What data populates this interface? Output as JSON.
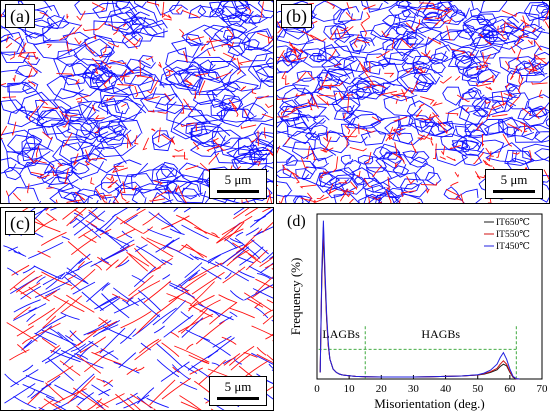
{
  "panels": [
    {
      "label": "(a)",
      "scale_bar": "5 μm",
      "seed": 11,
      "style": "equiaxed"
    },
    {
      "label": "(b)",
      "scale_bar": "5 μm",
      "seed": 23,
      "style": "fine"
    },
    {
      "label": "(c)",
      "scale_bar": "5 μm",
      "seed": 37,
      "style": "lath"
    }
  ],
  "colors": {
    "lagb": "#ff1010",
    "hagb": "#1010ff"
  },
  "chart_label": "(d)",
  "chart_data": {
    "type": "line",
    "xlabel": "Misorientation (deg.)",
    "ylabel": "Frequency (%)",
    "xlim": [
      0,
      70
    ],
    "ylim": [
      0,
      0.5
    ],
    "xticks": [
      0,
      10,
      20,
      30,
      40,
      50,
      60,
      70
    ],
    "regions": [
      {
        "label": "LAGBs",
        "from": 0,
        "to": 15
      },
      {
        "label": "HAGBs",
        "from": 15,
        "to": 62
      }
    ],
    "boundaries": [
      15,
      62
    ],
    "threshold_line": 0.09,
    "series": [
      {
        "name": "IT650℃",
        "color": "#1a1a1a",
        "x": [
          1,
          1.5,
          2,
          2.5,
          3,
          3.5,
          4,
          5,
          6,
          7,
          8,
          10,
          12,
          15,
          20,
          25,
          30,
          35,
          40,
          45,
          50,
          52,
          54,
          56,
          57,
          58,
          59,
          60,
          61,
          62,
          63
        ],
        "y": [
          0.02,
          0.3,
          0.44,
          0.3,
          0.18,
          0.1,
          0.06,
          0.03,
          0.02,
          0.015,
          0.012,
          0.01,
          0.008,
          0.007,
          0.006,
          0.006,
          0.006,
          0.007,
          0.008,
          0.009,
          0.012,
          0.015,
          0.02,
          0.028,
          0.038,
          0.045,
          0.04,
          0.02,
          0.005,
          0.001,
          0
        ]
      },
      {
        "name": "IT550℃",
        "color": "#d01010",
        "x": [
          1,
          1.5,
          2,
          2.5,
          3,
          3.5,
          4,
          5,
          6,
          7,
          8,
          10,
          12,
          15,
          20,
          25,
          30,
          35,
          40,
          45,
          50,
          52,
          54,
          56,
          57,
          58,
          59,
          60,
          61,
          62,
          63
        ],
        "y": [
          0.02,
          0.32,
          0.46,
          0.31,
          0.19,
          0.1,
          0.06,
          0.03,
          0.02,
          0.015,
          0.012,
          0.01,
          0.008,
          0.007,
          0.006,
          0.006,
          0.006,
          0.007,
          0.008,
          0.009,
          0.012,
          0.016,
          0.022,
          0.032,
          0.045,
          0.055,
          0.045,
          0.022,
          0.006,
          0.001,
          0
        ]
      },
      {
        "name": "IT450℃",
        "color": "#2020e0",
        "x": [
          1,
          1.5,
          2,
          2.5,
          3,
          3.5,
          4,
          5,
          6,
          7,
          8,
          10,
          12,
          15,
          20,
          25,
          30,
          35,
          40,
          45,
          50,
          52,
          54,
          56,
          57,
          58,
          59,
          60,
          61,
          62,
          63
        ],
        "y": [
          0.02,
          0.33,
          0.48,
          0.33,
          0.2,
          0.11,
          0.06,
          0.03,
          0.02,
          0.015,
          0.012,
          0.01,
          0.008,
          0.007,
          0.006,
          0.006,
          0.006,
          0.007,
          0.008,
          0.009,
          0.013,
          0.018,
          0.027,
          0.045,
          0.065,
          0.08,
          0.06,
          0.03,
          0.008,
          0.001,
          0
        ]
      }
    ]
  }
}
